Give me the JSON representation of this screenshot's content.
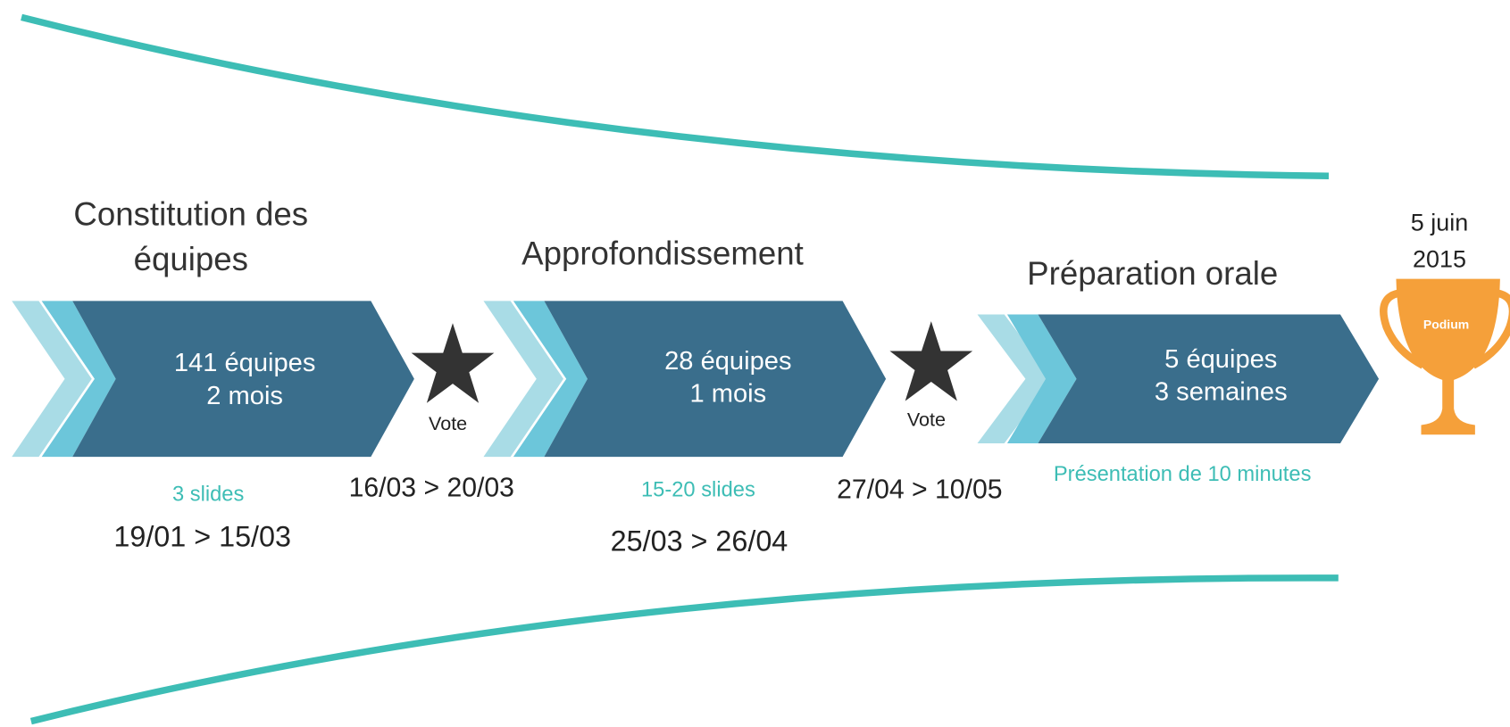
{
  "phases": [
    {
      "title": [
        "Constitution des",
        "équipes"
      ],
      "teams": "141 équipes",
      "duration": "2 mois",
      "note": "3 slides",
      "dates": "19/01 > 15/03"
    },
    {
      "title": [
        "Approfondissement"
      ],
      "teams": "28 équipes",
      "duration": "1 mois",
      "note": "15-20 slides",
      "dates": "25/03 > 26/04"
    },
    {
      "title": [
        "Préparation orale"
      ],
      "teams": "5 équipes",
      "duration": "3 semaines",
      "note": "Présentation de 10 minutes"
    }
  ],
  "votes": [
    {
      "label": "Vote",
      "dates": "16/03 > 20/03"
    },
    {
      "label": "Vote",
      "dates": "27/04 > 10/05"
    }
  ],
  "final": {
    "date": [
      "5 juin",
      "2015"
    ],
    "trophy": "Podium"
  }
}
